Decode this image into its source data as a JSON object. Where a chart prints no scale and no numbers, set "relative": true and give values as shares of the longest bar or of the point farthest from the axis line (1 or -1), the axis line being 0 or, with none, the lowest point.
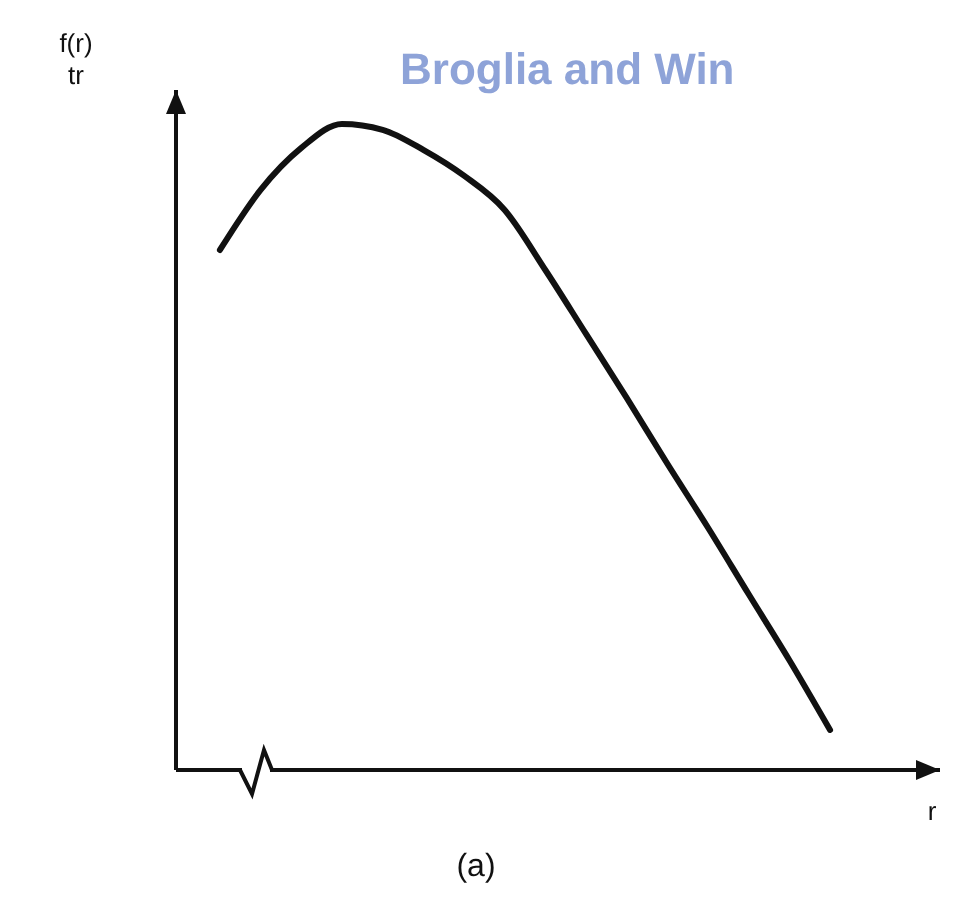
{
  "chart_data": {
    "type": "line",
    "relative": true,
    "xlabel": "r",
    "ylabel": "f(r)\ntr",
    "categories": [
      null,
      null,
      null,
      null,
      null,
      null,
      null,
      null,
      null,
      null,
      null,
      null,
      null,
      null,
      null,
      null
    ],
    "series": [
      {
        "color": "#111111",
        "values": [
          0.805,
          0.898,
          0.963,
          1,
          0.991,
          0.96,
          0.92,
          0.867,
          0.774,
          0.675,
          0.576,
          0.474,
          0.375,
          0.272,
          0.17,
          0.062
        ]
      }
    ],
    "marker": "none",
    "line_style": "solid",
    "annotations": [
      "Broglia and Win",
      "(a)"
    ]
  }
}
